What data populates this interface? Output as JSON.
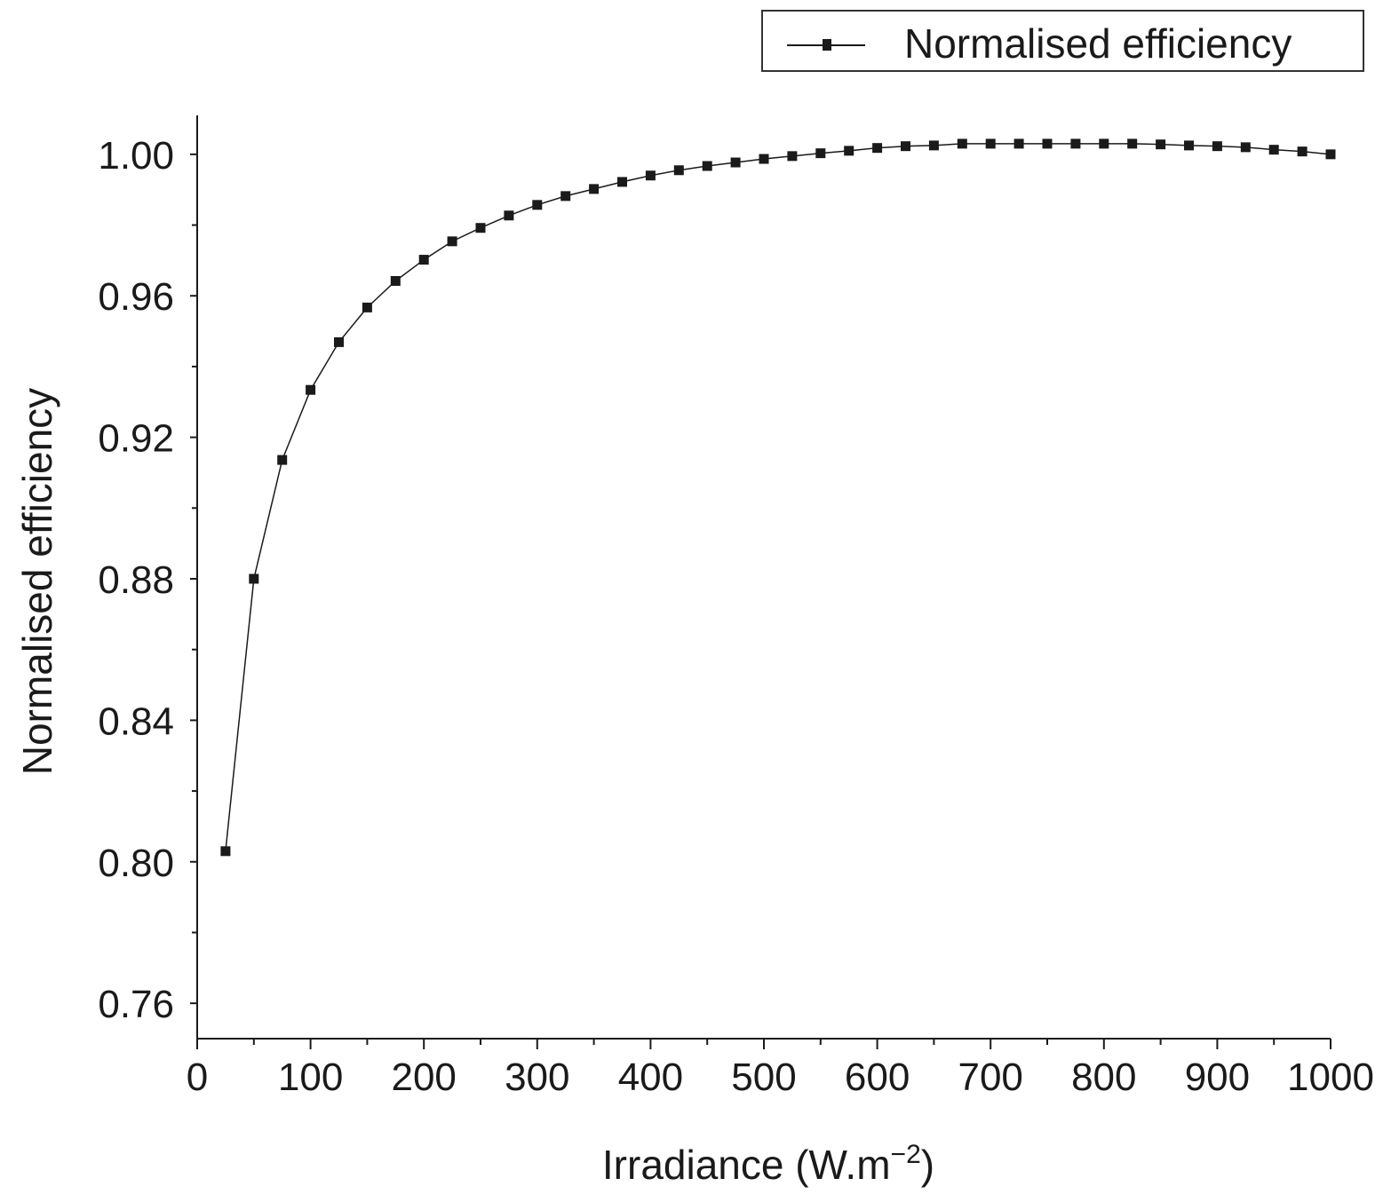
{
  "chart_data": {
    "type": "line",
    "title": "",
    "xlabel": "Irradiance (W.m−2)",
    "xlabel_main": "Irradiance (W.m",
    "xlabel_sup": "−2",
    "xlabel_end": ")",
    "ylabel": "Normalised efficiency",
    "xlim": [
      0,
      1000
    ],
    "ylim": [
      0.75,
      1.011
    ],
    "xticks": [
      0,
      100,
      200,
      300,
      400,
      500,
      600,
      700,
      800,
      900,
      1000
    ],
    "xtick_labels": [
      "0",
      "100",
      "200",
      "300",
      "400",
      "500",
      "600",
      "700",
      "800",
      "900",
      "1000"
    ],
    "yticks": [
      0.76,
      0.8,
      0.84,
      0.88,
      0.92,
      0.96,
      1.0
    ],
    "ytick_labels": [
      "0.76",
      "0.80",
      "0.84",
      "0.88",
      "0.92",
      "0.96",
      "1.00"
    ],
    "grid": false,
    "legend_position": "top-right",
    "series": [
      {
        "name": "Normalised efficiency",
        "color": "#1a1a1a",
        "marker": "square",
        "x": [
          25,
          50,
          75,
          100,
          125,
          150,
          175,
          200,
          225,
          250,
          275,
          300,
          325,
          350,
          375,
          400,
          425,
          450,
          475,
          500,
          525,
          550,
          575,
          600,
          625,
          650,
          675,
          700,
          725,
          750,
          775,
          800,
          825,
          850,
          875,
          900,
          925,
          950,
          975,
          1000
        ],
        "values": [
          0.803,
          0.88,
          0.9136,
          0.9334,
          0.9469,
          0.9567,
          0.9642,
          0.9702,
          0.9754,
          0.9792,
          0.9827,
          0.9857,
          0.9882,
          0.9902,
          0.9922,
          0.994,
          0.9955,
          0.9967,
          0.9977,
          0.9987,
          0.9995,
          1.0003,
          1.001,
          1.0018,
          1.0023,
          1.0025,
          1.003,
          1.003,
          1.003,
          1.003,
          1.003,
          1.003,
          1.003,
          1.0028,
          1.0025,
          1.0023,
          1.002,
          1.0013,
          1.0008,
          1.0
        ]
      }
    ]
  }
}
